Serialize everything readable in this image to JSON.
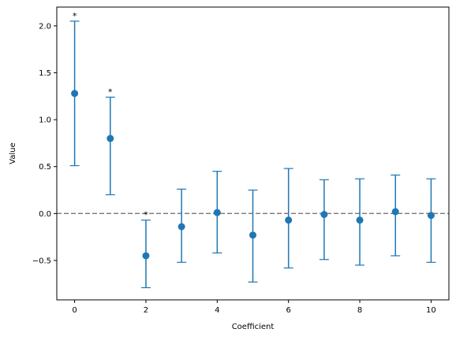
{
  "chart_data": {
    "type": "scatter",
    "title": "",
    "xlabel": "Coefficient",
    "ylabel": "Value",
    "xlim": [
      -0.5,
      10.5
    ],
    "ylim": [
      -0.92,
      2.2
    ],
    "xticks": [
      0,
      2,
      4,
      6,
      8,
      10
    ],
    "yticks": [
      -0.5,
      0.0,
      0.5,
      1.0,
      1.5,
      2.0
    ],
    "ytick_labels": [
      "−0.5",
      "0.0",
      "0.5",
      "1.0",
      "1.5",
      "2.0"
    ],
    "grid": false,
    "reference_line": {
      "y": 0.0,
      "style": "dashed",
      "color": "#808080"
    },
    "color": "#1f77b4",
    "points": [
      {
        "x": 0,
        "y": 1.28,
        "lower": 0.51,
        "upper": 2.05,
        "marker": "*"
      },
      {
        "x": 1,
        "y": 0.8,
        "lower": 0.2,
        "upper": 1.24,
        "marker": "*"
      },
      {
        "x": 2,
        "y": -0.45,
        "lower": -0.79,
        "upper": -0.07,
        "marker": "*"
      },
      {
        "x": 3,
        "y": -0.14,
        "lower": -0.52,
        "upper": 0.26,
        "marker": ""
      },
      {
        "x": 4,
        "y": 0.01,
        "lower": -0.42,
        "upper": 0.45,
        "marker": ""
      },
      {
        "x": 5,
        "y": -0.23,
        "lower": -0.73,
        "upper": 0.25,
        "marker": ""
      },
      {
        "x": 6,
        "y": -0.07,
        "lower": -0.58,
        "upper": 0.48,
        "marker": ""
      },
      {
        "x": 7,
        "y": -0.01,
        "lower": -0.49,
        "upper": 0.36,
        "marker": ""
      },
      {
        "x": 8,
        "y": -0.07,
        "lower": -0.55,
        "upper": 0.37,
        "marker": ""
      },
      {
        "x": 9,
        "y": 0.02,
        "lower": -0.45,
        "upper": 0.41,
        "marker": ""
      },
      {
        "x": 10,
        "y": -0.02,
        "lower": -0.52,
        "upper": 0.37,
        "marker": ""
      }
    ]
  }
}
